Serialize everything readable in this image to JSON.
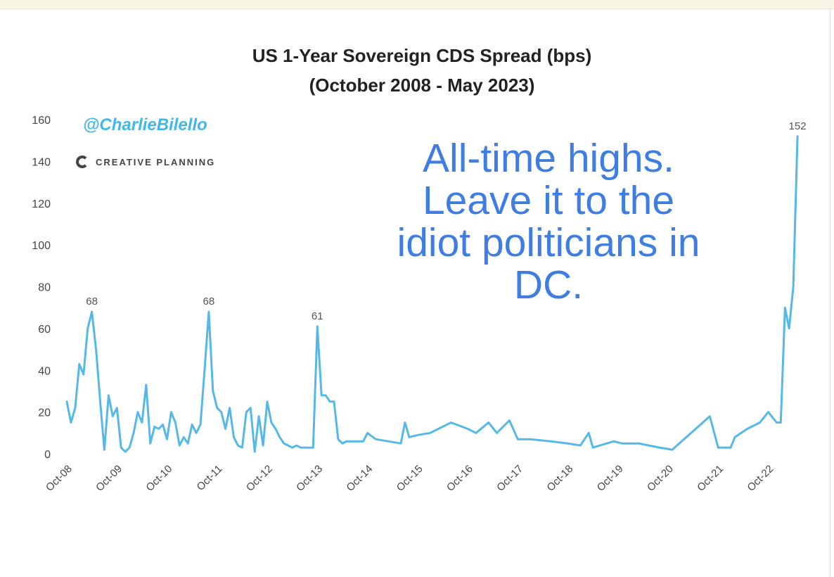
{
  "chart_title_line1": "US 1-Year Sovereign CDS Spread (bps)",
  "chart_title_line2": "(October 2008 - May 2023)",
  "watermark": "@CharlieBilello",
  "brand": "CREATIVE PLANNING",
  "annotation_lines": [
    "All-time highs.",
    "Leave it to the",
    "idiot politicians in",
    "DC."
  ],
  "colors": {
    "series": "#55b8e6",
    "annotation": "#3f7de0",
    "watermark": "#41b8e8"
  },
  "chart_data": {
    "type": "line",
    "title": "US 1-Year Sovereign CDS Spread (bps)",
    "subtitle": "(October 2008 - May 2023)",
    "xlabel": "",
    "ylabel": "",
    "ylim": [
      0,
      160
    ],
    "yticks": [
      0,
      20,
      40,
      60,
      80,
      100,
      120,
      140,
      160
    ],
    "xticks": [
      "Oct-08",
      "Oct-09",
      "Oct-10",
      "Oct-11",
      "Oct-12",
      "Oct-13",
      "Oct-14",
      "Oct-15",
      "Oct-16",
      "Oct-17",
      "Oct-18",
      "Oct-19",
      "Oct-20",
      "Oct-21",
      "Oct-22"
    ],
    "xlim": [
      "2008-10",
      "2023-06"
    ],
    "grid": false,
    "series": [
      {
        "name": "",
        "points": [
          [
            "2008-10",
            25
          ],
          [
            "2008-11",
            15
          ],
          [
            "2008-12",
            22
          ],
          [
            "2009-01",
            43
          ],
          [
            "2009-02",
            38
          ],
          [
            "2009-03",
            60
          ],
          [
            "2009-04",
            68
          ],
          [
            "2009-05",
            50
          ],
          [
            "2009-06",
            25
          ],
          [
            "2009-07",
            2
          ],
          [
            "2009-08",
            28
          ],
          [
            "2009-09",
            18
          ],
          [
            "2009-10",
            22
          ],
          [
            "2009-11",
            3
          ],
          [
            "2009-12",
            1
          ],
          [
            "2010-01",
            3
          ],
          [
            "2010-02",
            10
          ],
          [
            "2010-03",
            20
          ],
          [
            "2010-04",
            15
          ],
          [
            "2010-05",
            33
          ],
          [
            "2010-06",
            5
          ],
          [
            "2010-07",
            13
          ],
          [
            "2010-08",
            12
          ],
          [
            "2010-09",
            14
          ],
          [
            "2010-10",
            7
          ],
          [
            "2010-11",
            20
          ],
          [
            "2010-12",
            15
          ],
          [
            "2011-01",
            4
          ],
          [
            "2011-02",
            8
          ],
          [
            "2011-03",
            5
          ],
          [
            "2011-04",
            14
          ],
          [
            "2011-05",
            10
          ],
          [
            "2011-06",
            14
          ],
          [
            "2011-07",
            40
          ],
          [
            "2011-08",
            68
          ],
          [
            "2011-09",
            30
          ],
          [
            "2011-10",
            22
          ],
          [
            "2011-11",
            20
          ],
          [
            "2011-12",
            12
          ],
          [
            "2012-01",
            22
          ],
          [
            "2012-02",
            8
          ],
          [
            "2012-03",
            4
          ],
          [
            "2012-04",
            3
          ],
          [
            "2012-05",
            20
          ],
          [
            "2012-06",
            22
          ],
          [
            "2012-07",
            1
          ],
          [
            "2012-08",
            18
          ],
          [
            "2012-09",
            4
          ],
          [
            "2012-10",
            25
          ],
          [
            "2012-11",
            15
          ],
          [
            "2012-12",
            12
          ],
          [
            "2013-01",
            8
          ],
          [
            "2013-02",
            5
          ],
          [
            "2013-03",
            4
          ],
          [
            "2013-04",
            3
          ],
          [
            "2013-05",
            4
          ],
          [
            "2013-06",
            3
          ],
          [
            "2013-07",
            3
          ],
          [
            "2013-08",
            3
          ],
          [
            "2013-09",
            3
          ],
          [
            "2013-10",
            61
          ],
          [
            "2013-11",
            28
          ],
          [
            "2013-12",
            28
          ],
          [
            "2014-01",
            25
          ],
          [
            "2014-02",
            25
          ],
          [
            "2014-03",
            7
          ],
          [
            "2014-04",
            5
          ],
          [
            "2014-05",
            6
          ],
          [
            "2014-06",
            6
          ],
          [
            "2014-09",
            6
          ],
          [
            "2014-10",
            10
          ],
          [
            "2014-12",
            7
          ],
          [
            "2015-03",
            6
          ],
          [
            "2015-06",
            5
          ],
          [
            "2015-07",
            15
          ],
          [
            "2015-08",
            8
          ],
          [
            "2015-10",
            9
          ],
          [
            "2016-01",
            10
          ],
          [
            "2016-06",
            15
          ],
          [
            "2016-10",
            12
          ],
          [
            "2016-12",
            10
          ],
          [
            "2017-03",
            15
          ],
          [
            "2017-05",
            10
          ],
          [
            "2017-08",
            16
          ],
          [
            "2017-10",
            7
          ],
          [
            "2018-01",
            7
          ],
          [
            "2018-06",
            6
          ],
          [
            "2018-10",
            5
          ],
          [
            "2019-01",
            4
          ],
          [
            "2019-03",
            10
          ],
          [
            "2019-04",
            3
          ],
          [
            "2019-09",
            6
          ],
          [
            "2019-11",
            5
          ],
          [
            "2020-03",
            5
          ],
          [
            "2020-08",
            3
          ],
          [
            "2020-11",
            2
          ],
          [
            "2021-08",
            18
          ],
          [
            "2021-10",
            3
          ],
          [
            "2022-01",
            3
          ],
          [
            "2022-02",
            8
          ],
          [
            "2022-05",
            12
          ],
          [
            "2022-08",
            15
          ],
          [
            "2022-10",
            20
          ],
          [
            "2022-12",
            15
          ],
          [
            "2023-01",
            15
          ],
          [
            "2023-02",
            70
          ],
          [
            "2023-03",
            60
          ],
          [
            "2023-04",
            80
          ],
          [
            "2023-05",
            152
          ]
        ]
      }
    ],
    "annotations": [
      {
        "x": "2009-04",
        "y": 68,
        "text": "68"
      },
      {
        "x": "2011-08",
        "y": 68,
        "text": "68"
      },
      {
        "x": "2013-10",
        "y": 61,
        "text": "61"
      },
      {
        "x": "2023-05",
        "y": 152,
        "text": "152"
      }
    ]
  }
}
